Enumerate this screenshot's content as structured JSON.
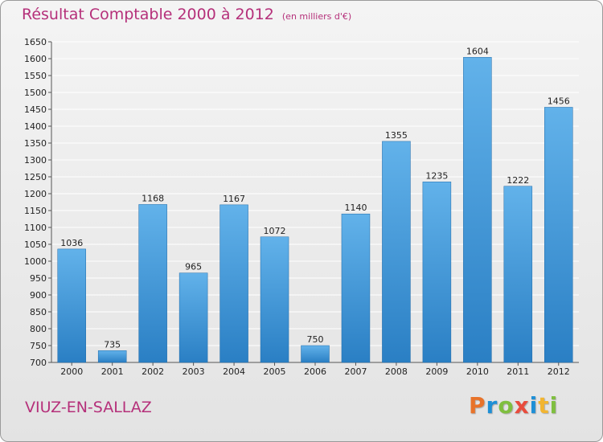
{
  "header": {
    "title": "Résultat Comptable 2000 à 2012",
    "unit": "(en milliers d'€)"
  },
  "footer": {
    "town": "VIUZ-EN-SALLAZ",
    "brand": "Proxiti"
  },
  "colors": {
    "accent": "#b5307a",
    "bar_light": "#62b2ea",
    "bar_dark": "#2a7fc4",
    "grid": "#ffffff",
    "logo": [
      "#e8732a",
      "#1e8fd6",
      "#7fbf3f",
      "#e84c3d",
      "#1e8fd6",
      "#f2b531",
      "#7fbf3f"
    ]
  },
  "chart_data": {
    "type": "bar",
    "title": "Résultat Comptable 2000 à 2012",
    "subtitle": "(en milliers d'€)",
    "xlabel": "",
    "ylabel": "",
    "categories": [
      "2000",
      "2001",
      "2002",
      "2003",
      "2004",
      "2005",
      "2006",
      "2007",
      "2008",
      "2009",
      "2010",
      "2011",
      "2012"
    ],
    "values": [
      1036,
      735,
      1168,
      965,
      1167,
      1072,
      750,
      1140,
      1355,
      1235,
      1604,
      1222,
      1456
    ],
    "ylim": [
      700,
      1650
    ],
    "ytick_step": 50,
    "grid": true,
    "data_labels": true
  }
}
